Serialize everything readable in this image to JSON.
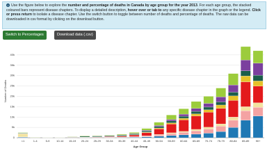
{
  "info": {
    "parts": [
      {
        "text": "Use the figure below to explore the ",
        "bold": false
      },
      {
        "text": "number and percentage of deaths in Canada by age group for the year 2013",
        "bold": true
      },
      {
        "text": ". For each age group, the stacked coloured bars represent disease chapters. To display a detailed description, ",
        "bold": false
      },
      {
        "text": "hover over or tab to",
        "bold": true
      },
      {
        "text": " any specific disease chapter in the graph or the legend. ",
        "bold": false
      },
      {
        "text": "Click or press return",
        "bold": true
      },
      {
        "text": " to isolate a disease chapter. Use the switch button to toggle between number of deaths and percentage of deaths. The raw data can be downloaded in csv format by clicking on the download button.",
        "bold": false
      }
    ]
  },
  "buttons": [
    "Switch to Percentages",
    "Download data (.csv)"
  ],
  "chart_data": {
    "type": "stacked_bar",
    "y_label": "Number of Deaths",
    "x_label": "Age Group",
    "categories": [
      "<1",
      "1-4",
      "5-9",
      "10-14",
      "15-19",
      "20-24",
      "25-29",
      "30-34",
      "35-39",
      "40-44",
      "45-49",
      "50-54",
      "55-59",
      "60-64",
      "65-69",
      "70-74",
      "75-79",
      "80-84",
      "85-89",
      "90+"
    ],
    "ylim": [
      0,
      45000
    ],
    "yticks": [
      0,
      {
        "value": 5000,
        "label": "5k"
      },
      {
        "value": 10000,
        "label": "10k"
      },
      {
        "value": 15000,
        "label": "15k"
      },
      {
        "value": 20000,
        "label": "20k"
      },
      {
        "value": 25000,
        "label": "25k"
      },
      {
        "value": 30000,
        "label": "30k"
      },
      {
        "value": 35000,
        "label": "35k"
      },
      {
        "value": 40000,
        "label": "40k"
      }
    ],
    "grid": true,
    "series": [
      {
        "color": "#1f78b4",
        "values": [
          300,
          30,
          20,
          20,
          60,
          100,
          110,
          130,
          170,
          260,
          450,
          750,
          1100,
          1400,
          1750,
          2200,
          3000,
          5000,
          8500,
          10500
        ]
      },
      {
        "color": "#f4a3a3",
        "values": [
          100,
          20,
          10,
          10,
          40,
          60,
          70,
          90,
          120,
          200,
          350,
          600,
          900,
          1200,
          1600,
          2000,
          2600,
          3500,
          4500,
          4200
        ]
      },
      {
        "color": "#f3e3a0",
        "values": [
          1500,
          30,
          10,
          10,
          20,
          30,
          40,
          50,
          60,
          80,
          150,
          250,
          400,
          500,
          700,
          900,
          1100,
          1500,
          2000,
          2200
        ]
      },
      {
        "color": "#e31a1c",
        "values": [
          50,
          40,
          60,
          50,
          80,
          100,
          150,
          250,
          400,
          800,
          1500,
          2700,
          4200,
          5500,
          6500,
          7200,
          7500,
          8000,
          12000,
          8000
        ]
      },
      {
        "color": "#e6c229",
        "values": [
          50,
          20,
          10,
          10,
          30,
          50,
          60,
          80,
          100,
          150,
          250,
          400,
          600,
          800,
          1000,
          1200,
          1600,
          2200,
          2800,
          2500
        ]
      },
      {
        "color": "#1b5e4a",
        "values": [
          200,
          40,
          30,
          40,
          200,
          400,
          380,
          350,
          380,
          450,
          600,
          700,
          900,
          1000,
          1200,
          1300,
          1500,
          1800,
          2500,
          2800
        ]
      },
      {
        "color": "#7b3f9e",
        "values": [
          100,
          40,
          20,
          20,
          40,
          60,
          70,
          90,
          120,
          180,
          300,
          500,
          700,
          1000,
          1400,
          1800,
          2400,
          3500,
          5200,
          5800
        ]
      },
      {
        "color": "#9ccc3c",
        "values": [
          200,
          80,
          40,
          40,
          130,
          200,
          220,
          260,
          350,
          480,
          900,
          1600,
          2200,
          2600,
          3350,
          3400,
          4300,
          5500,
          6500,
          6000
        ]
      }
    ]
  }
}
